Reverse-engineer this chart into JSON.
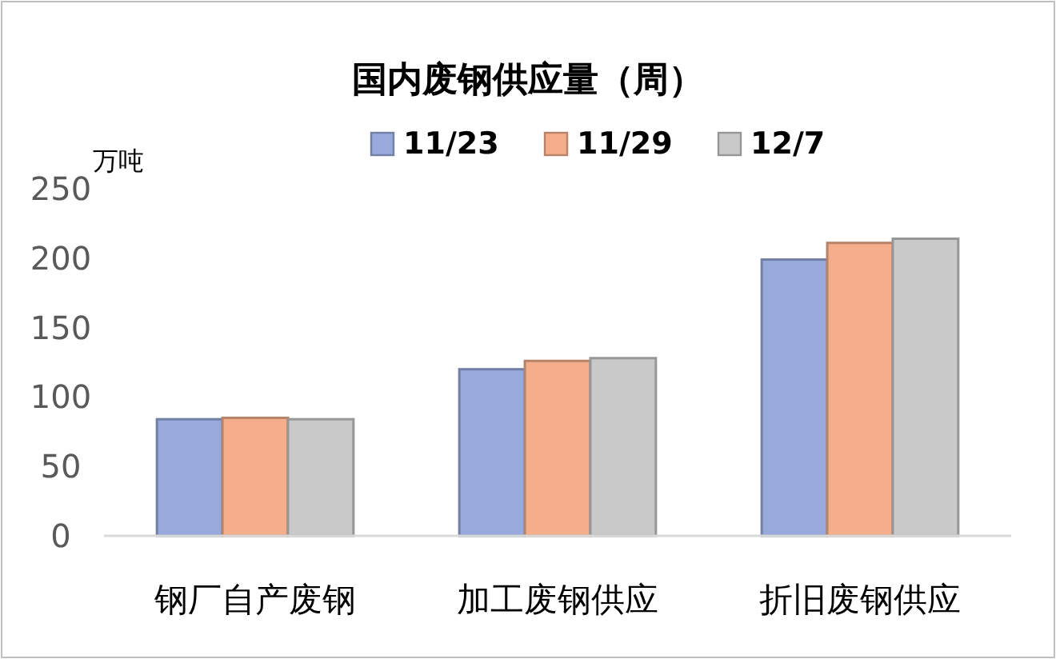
{
  "chart_data": {
    "type": "bar",
    "title": "国内废钢供应量（周）",
    "ylabel": "万吨",
    "categories": [
      "钢厂自产废钢",
      "加工废钢供应",
      "折旧废钢供应"
    ],
    "series": [
      {
        "name": "11/23",
        "color": "#97aadb",
        "values": [
          84,
          120,
          199
        ]
      },
      {
        "name": "11/29",
        "color": "#f4ae8c",
        "values": [
          85,
          126,
          211
        ]
      },
      {
        "name": "12/7",
        "color": "#c9c9c9",
        "values": [
          84,
          128,
          214
        ]
      }
    ],
    "ylim": [
      0,
      250
    ],
    "yticks": [
      0,
      50,
      100,
      150,
      200,
      250
    ],
    "grid": false,
    "legend": "top"
  }
}
